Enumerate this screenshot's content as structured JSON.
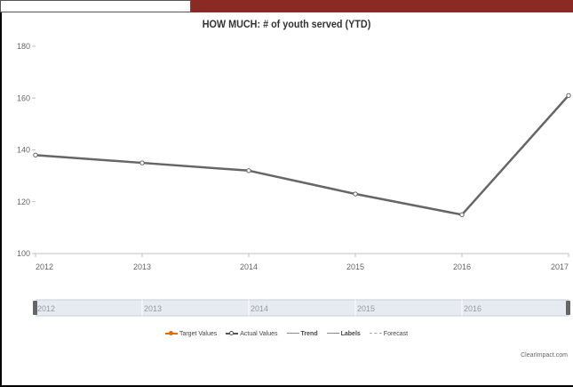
{
  "chart_data": {
    "type": "line",
    "title": "HOW MUCH: # of youth served (YTD)",
    "xlabel": "",
    "ylabel": "",
    "categories": [
      "2012",
      "2013",
      "2014",
      "2015",
      "2016",
      "2017"
    ],
    "yticks": [
      100,
      120,
      140,
      160,
      180
    ],
    "ylim": [
      100,
      180
    ],
    "series": [
      {
        "name": "Actual Values",
        "values": [
          138,
          135,
          132,
          123,
          115,
          161
        ],
        "color": "#666666"
      }
    ],
    "navigator_labels": [
      "2012",
      "2013",
      "2014",
      "2015",
      "2016"
    ],
    "legend": [
      {
        "label": "Target Values",
        "color": "#e36c09",
        "marker": "dot"
      },
      {
        "label": "Actual Values",
        "color": "#555555",
        "marker": "hollow-dot"
      },
      {
        "label": "Trend",
        "color": "#888888",
        "marker": "line"
      },
      {
        "label": "Labels",
        "color": "#888888",
        "marker": "line"
      },
      {
        "label": "Forecast",
        "color": "#aaaaaa",
        "marker": "dashed"
      }
    ],
    "legend_placement": "bottom",
    "grid": false
  },
  "credit": "ClearImpact.com"
}
